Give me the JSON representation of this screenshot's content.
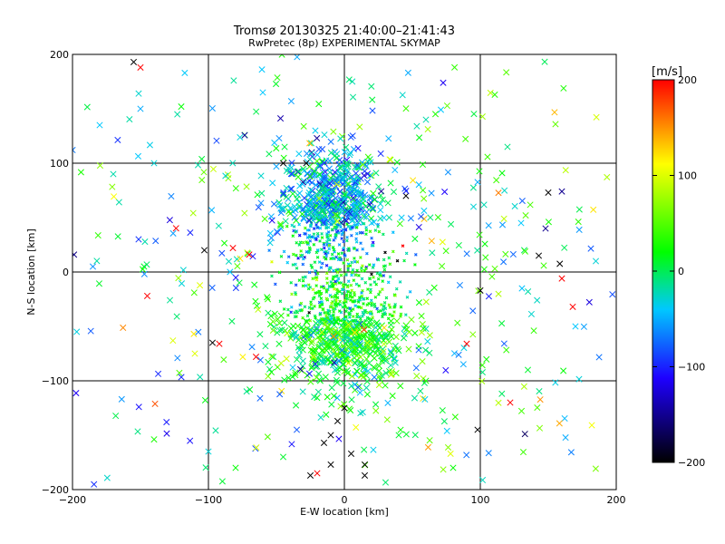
{
  "chart_data": {
    "type": "scatter",
    "title": "Tromsø 20130325 21:40:00–21:41:43",
    "subtitle": "RwPretec (8p) EXPERIMENTAL SKYMAP",
    "xlabel": "E-W location [km]",
    "ylabel": "N-S location [km]",
    "xlim": [
      -200,
      200
    ],
    "ylim": [
      -200,
      200
    ],
    "xticks": [
      -200,
      -100,
      0,
      100,
      200
    ],
    "yticks": [
      -200,
      -100,
      0,
      100,
      200
    ],
    "x_tick_labels": [
      "−200",
      "−100",
      "0",
      "100",
      "200"
    ],
    "y_tick_labels": [
      "−200",
      "−100",
      "0",
      "100",
      "200"
    ],
    "grid": true,
    "color_variable": "velocity",
    "colorbar": {
      "unit_label": "[m/s]",
      "range": [
        -200,
        200
      ],
      "ticks": [
        -200,
        -100,
        0,
        100,
        200
      ],
      "tick_labels": [
        "−200",
        "−100",
        "0",
        "100",
        "200"
      ],
      "colors": [
        "#000000",
        "#1e00ff",
        "#00c8ff",
        "#00ff00",
        "#ffff00",
        "#ff0000"
      ]
    },
    "markers": [
      "small dot (near range)",
      "cross (far range)"
    ],
    "clusters": [
      {
        "cx": -10,
        "cy": 60,
        "sx": 18,
        "sy": 28,
        "v": -45,
        "vs": 40,
        "n": 700
      },
      {
        "cx": 0,
        "cy": -50,
        "sx": 22,
        "sy": 30,
        "v": 15,
        "vs": 30,
        "n": 800
      },
      {
        "cx": 0,
        "cy": 0,
        "sx": 110,
        "sy": 110,
        "v": 0,
        "vs": 70,
        "n": 500
      }
    ],
    "points": [
      {
        "x": -155,
        "y": 193,
        "v": -200
      },
      {
        "x": -150,
        "y": 188,
        "v": 200
      },
      {
        "x": 150,
        "y": 73,
        "v": -200
      },
      {
        "x": 160,
        "y": 74,
        "v": -150
      },
      {
        "x": 148,
        "y": 40,
        "v": -150
      },
      {
        "x": -103,
        "y": 20,
        "v": -200
      },
      {
        "x": -82,
        "y": 22,
        "v": 200
      },
      {
        "x": -70,
        "y": 16,
        "v": 200
      },
      {
        "x": -145,
        "y": -22,
        "v": 200
      },
      {
        "x": -97,
        "y": -65,
        "v": -200
      },
      {
        "x": -92,
        "y": -66,
        "v": 200
      },
      {
        "x": -110,
        "y": -75,
        "v": 100
      },
      {
        "x": -65,
        "y": -78,
        "v": 200
      },
      {
        "x": 90,
        "y": -66,
        "v": 200
      },
      {
        "x": 122,
        "y": -120,
        "v": 200
      },
      {
        "x": 143,
        "y": 15,
        "v": -200
      },
      {
        "x": 160,
        "y": -6,
        "v": 200
      },
      {
        "x": 168,
        "y": -32,
        "v": 200
      },
      {
        "x": 30,
        "y": 18,
        "v": -200
      },
      {
        "x": 43,
        "y": 24,
        "v": 200
      },
      {
        "x": 20,
        "y": -2,
        "v": -200
      },
      {
        "x": -28,
        "y": 100,
        "v": -200
      },
      {
        "x": -45,
        "y": 100,
        "v": -200
      },
      {
        "x": 0,
        "y": -125,
        "v": -200
      },
      {
        "x": -5,
        "y": -137,
        "v": -200
      },
      {
        "x": -10,
        "y": -150,
        "v": -200
      },
      {
        "x": -15,
        "y": -157,
        "v": -200
      },
      {
        "x": 5,
        "y": -167,
        "v": -200
      },
      {
        "x": -20,
        "y": -185,
        "v": 200
      },
      {
        "x": -25,
        "y": -187,
        "v": -200
      },
      {
        "x": -10,
        "y": -177,
        "v": -200
      },
      {
        "x": 15,
        "y": -177,
        "v": -200
      },
      {
        "x": 15,
        "y": -187,
        "v": -200
      },
      {
        "x": 98,
        "y": -145,
        "v": -200
      },
      {
        "x": 100,
        "y": -17,
        "v": -200
      },
      {
        "x": -180,
        "y": 135,
        "v": -40
      },
      {
        "x": -170,
        "y": 90,
        "v": -20
      },
      {
        "x": -185,
        "y": 5,
        "v": -60
      },
      {
        "x": 185,
        "y": 10,
        "v": -30
      },
      {
        "x": 170,
        "y": -50,
        "v": -40
      },
      {
        "x": -120,
        "y": 152,
        "v": 20
      },
      {
        "x": -60,
        "y": 165,
        "v": -40
      },
      {
        "x": 130,
        "y": 45,
        "v": -40
      },
      {
        "x": 95,
        "y": 60,
        "v": -30
      },
      {
        "x": -35,
        "y": -145,
        "v": -80
      },
      {
        "x": -45,
        "y": -170,
        "v": 10
      },
      {
        "x": 60,
        "y": -100,
        "v": 30
      },
      {
        "x": 40,
        "y": -150,
        "v": 10
      },
      {
        "x": 80,
        "y": -180,
        "v": 20
      },
      {
        "x": -80,
        "y": -180,
        "v": 20
      },
      {
        "x": -150,
        "y": 150,
        "v": -50
      },
      {
        "x": -140,
        "y": 100,
        "v": -30
      },
      {
        "x": 135,
        "y": -90,
        "v": 10
      },
      {
        "x": -100,
        "y": -165,
        "v": -30
      },
      {
        "x": 120,
        "y": 115,
        "v": -10
      },
      {
        "x": 60,
        "y": 140,
        "v": -20
      }
    ]
  }
}
